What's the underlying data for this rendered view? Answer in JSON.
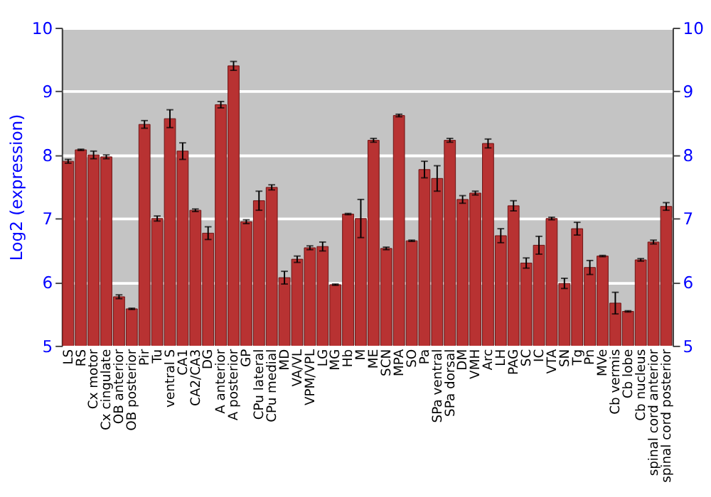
{
  "chart_data": {
    "type": "bar",
    "ylabel": "Log2 (expression)",
    "categories": [
      "LS",
      "RS",
      "Cx motor",
      "Cx cingulate",
      "OB anterior",
      "OB posterior",
      "Pir",
      "Tu",
      "ventral S",
      "CA1",
      "CA2/CA3",
      "DG",
      "A anterior",
      "A posterior",
      "GP",
      "CPu lateral",
      "CPu medial",
      "MD",
      "VA/VL",
      "VPM/VPL",
      "LG",
      "MG",
      "Hb",
      "M",
      "ME",
      "SCN",
      "MPA",
      "SO",
      "Pa",
      "SPa ventral",
      "SPa dorsal",
      "DM",
      "VMH",
      "Arc",
      "LH",
      "PAG",
      "SC",
      "IC",
      "VTA",
      "SN",
      "Tg",
      "Pn",
      "MVe",
      "Cb vermis",
      "Cb lobe",
      "Cb nucleus",
      "spinal cord anterior",
      "spinal cord posterior"
    ],
    "values": [
      7.9,
      8.08,
      8.0,
      7.97,
      5.77,
      5.58,
      8.48,
      7.0,
      8.57,
      8.06,
      7.13,
      6.77,
      8.79,
      9.4,
      6.95,
      7.28,
      7.49,
      6.07,
      6.36,
      6.54,
      6.56,
      5.96,
      7.07,
      7.0,
      8.23,
      6.53,
      8.62,
      6.65,
      7.77,
      7.63,
      8.23,
      7.3,
      7.4,
      8.18,
      6.73,
      7.2,
      6.3,
      6.58,
      7.0,
      5.98,
      6.84,
      6.23,
      6.41,
      5.67,
      5.54,
      6.35,
      6.63,
      7.19
    ],
    "errors": [
      0.03,
      0.01,
      0.06,
      0.03,
      0.03,
      0.01,
      0.06,
      0.04,
      0.14,
      0.13,
      0.02,
      0.1,
      0.05,
      0.07,
      0.03,
      0.15,
      0.04,
      0.1,
      0.05,
      0.03,
      0.07,
      0.01,
      0.01,
      0.3,
      0.03,
      0.02,
      0.02,
      0.01,
      0.13,
      0.2,
      0.03,
      0.06,
      0.03,
      0.07,
      0.11,
      0.08,
      0.08,
      0.14,
      0.02,
      0.08,
      0.1,
      0.11,
      0.01,
      0.17,
      0.01,
      0.02,
      0.03,
      0.06
    ],
    "color": "#b83232",
    "ylim": [
      5,
      10
    ],
    "yticks": [
      5,
      6,
      7,
      8,
      9,
      10
    ],
    "y2lim": [
      5,
      10
    ],
    "y2ticks": [
      5,
      6,
      7,
      8,
      9,
      10
    ],
    "grid": "y"
  }
}
